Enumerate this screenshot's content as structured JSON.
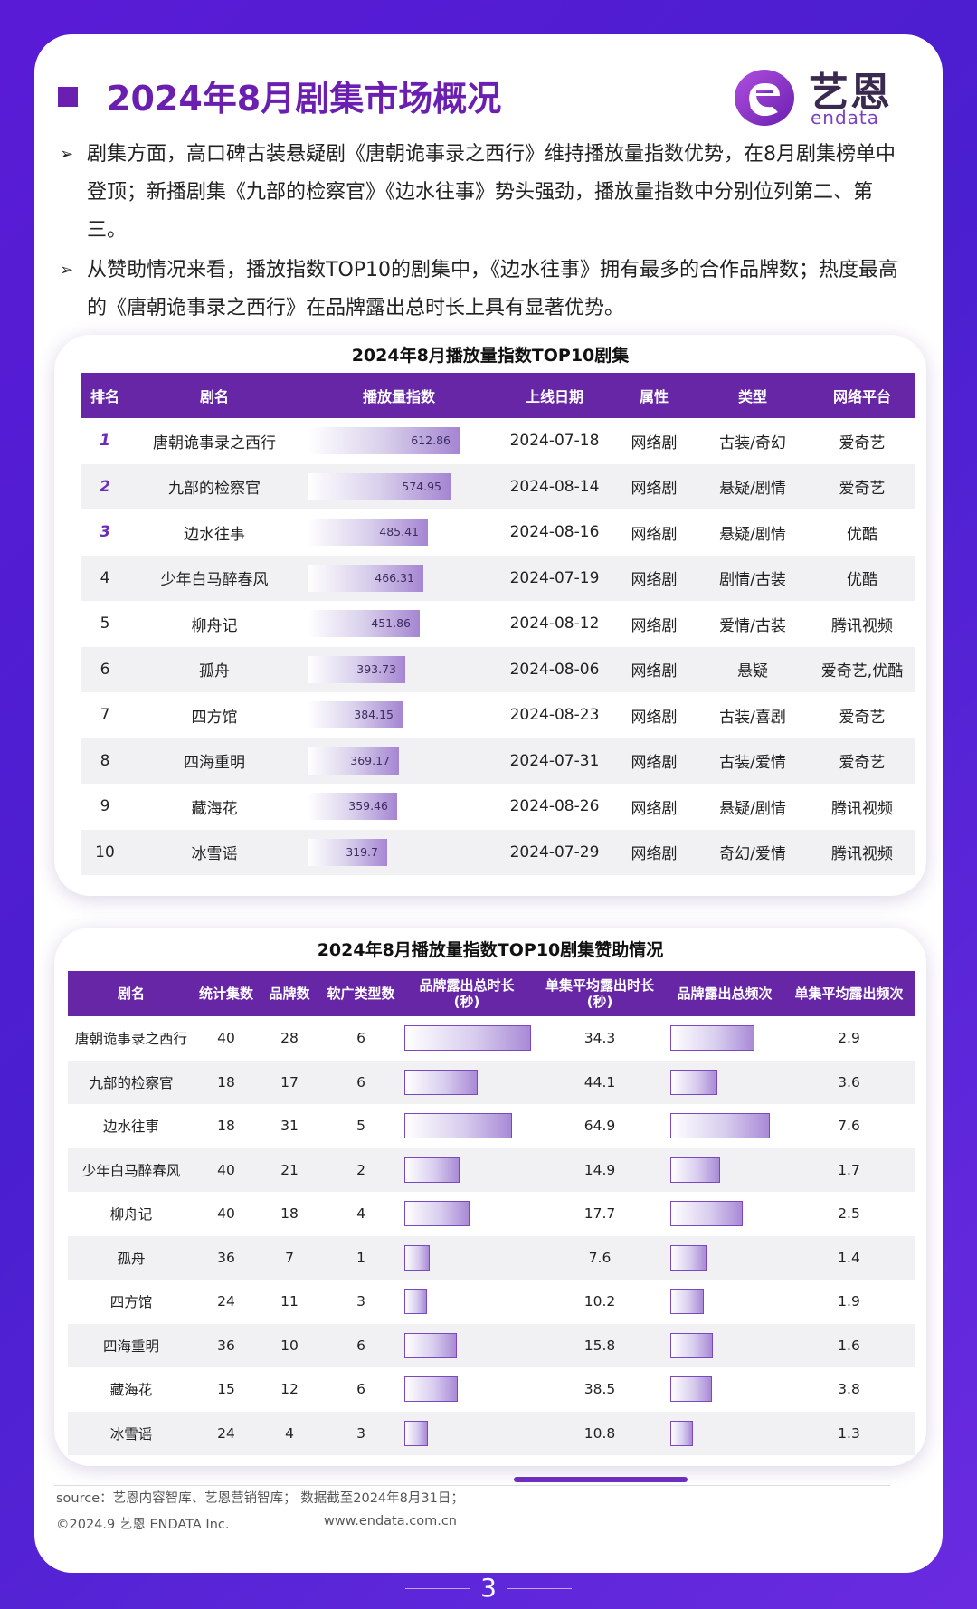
{
  "header": {
    "title": "2024年8月剧集市场概况",
    "logo_cn": "艺恩",
    "logo_en": "endata"
  },
  "bullets": [
    "剧集方面，高口碑古装悬疑剧《唐朝诡事录之西行》维持播放量指数优势，在8月剧集榜单中登顶；新播剧集《九部的检察官》《边水往事》势头强劲，播放量指数中分别位列第二、第三。",
    "从赞助情况来看，播放指数TOP10的剧集中，《边水往事》拥有最多的合作品牌数；热度最高的《唐朝诡事录之西行》在品牌露出总时长上具有显著优势。"
  ],
  "table1": {
    "title": "2024年8月播放量指数TOP10剧集",
    "headers": [
      "排名",
      "剧名",
      "播放量指数",
      "上线日期",
      "属性",
      "类型",
      "网络平台"
    ],
    "max_index": 612.86,
    "rows": [
      {
        "rank": "1",
        "name": "唐朝诡事录之西行",
        "index": 612.86,
        "index_label": "612.86",
        "date": "2024-07-18",
        "attr": "网络剧",
        "type": "古装/奇幻",
        "platform": "爱奇艺"
      },
      {
        "rank": "2",
        "name": "九部的检察官",
        "index": 574.95,
        "index_label": "574.95",
        "date": "2024-08-14",
        "attr": "网络剧",
        "type": "悬疑/剧情",
        "platform": "爱奇艺"
      },
      {
        "rank": "3",
        "name": "边水往事",
        "index": 485.41,
        "index_label": "485.41",
        "date": "2024-08-16",
        "attr": "网络剧",
        "type": "悬疑/剧情",
        "platform": "优酷"
      },
      {
        "rank": "4",
        "name": "少年白马醉春风",
        "index": 466.31,
        "index_label": "466.31",
        "date": "2024-07-19",
        "attr": "网络剧",
        "type": "剧情/古装",
        "platform": "优酷"
      },
      {
        "rank": "5",
        "name": "柳舟记",
        "index": 451.86,
        "index_label": "451.86",
        "date": "2024-08-12",
        "attr": "网络剧",
        "type": "爱情/古装",
        "platform": "腾讯视频"
      },
      {
        "rank": "6",
        "name": "孤舟",
        "index": 393.73,
        "index_label": "393.73",
        "date": "2024-08-06",
        "attr": "网络剧",
        "type": "悬疑",
        "platform": "爱奇艺,优酷"
      },
      {
        "rank": "7",
        "name": "四方馆",
        "index": 384.15,
        "index_label": "384.15",
        "date": "2024-08-23",
        "attr": "网络剧",
        "type": "古装/喜剧",
        "platform": "爱奇艺"
      },
      {
        "rank": "8",
        "name": "四海重明",
        "index": 369.17,
        "index_label": "369.17",
        "date": "2024-07-31",
        "attr": "网络剧",
        "type": "古装/爱情",
        "platform": "爱奇艺"
      },
      {
        "rank": "9",
        "name": "藏海花",
        "index": 359.46,
        "index_label": "359.46",
        "date": "2024-08-26",
        "attr": "网络剧",
        "type": "悬疑/剧情",
        "platform": "腾讯视频"
      },
      {
        "rank": "10",
        "name": "冰雪谣",
        "index": 319.7,
        "index_label": "319.7",
        "date": "2024-07-29",
        "attr": "网络剧",
        "type": "奇幻/爱情",
        "platform": "腾讯视频"
      }
    ]
  },
  "table2": {
    "title": "2024年8月播放量指数TOP10剧集赞助情况",
    "headers": [
      "剧名",
      "统计集数",
      "品牌数",
      "软广类型数",
      "品牌露出总时长",
      "单集平均露出时长",
      "品牌露出总频次",
      "单集平均露出频次"
    ],
    "header_units": [
      "",
      "",
      "",
      "",
      "(秒)",
      "(秒)",
      "",
      ""
    ],
    "rows": [
      {
        "name": "唐朝诡事录之西行",
        "episodes": "40",
        "brands": "28",
        "ad_types": "6",
        "total_duration": 1372,
        "avg_duration": "34.3",
        "total_freq": 116,
        "avg_freq": "2.9"
      },
      {
        "name": "九部的检察官",
        "episodes": "18",
        "brands": "17",
        "ad_types": "6",
        "total_duration": 794,
        "avg_duration": "44.1",
        "total_freq": 65,
        "avg_freq": "3.6"
      },
      {
        "name": "边水往事",
        "episodes": "18",
        "brands": "31",
        "ad_types": "5",
        "total_duration": 1168,
        "avg_duration": "64.9",
        "total_freq": 137,
        "avg_freq": "7.6"
      },
      {
        "name": "少年白马醉春风",
        "episodes": "40",
        "brands": "21",
        "ad_types": "2",
        "total_duration": 596,
        "avg_duration": "14.9",
        "total_freq": 68,
        "avg_freq": "1.7"
      },
      {
        "name": "柳舟记",
        "episodes": "40",
        "brands": "18",
        "ad_types": "4",
        "total_duration": 708,
        "avg_duration": "17.7",
        "total_freq": 100,
        "avg_freq": "2.5"
      },
      {
        "name": "孤舟",
        "episodes": "36",
        "brands": "7",
        "ad_types": "1",
        "total_duration": 274,
        "avg_duration": "7.6",
        "total_freq": 50,
        "avg_freq": "1.4"
      },
      {
        "name": "四方馆",
        "episodes": "24",
        "brands": "11",
        "ad_types": "3",
        "total_duration": 245,
        "avg_duration": "10.2",
        "total_freq": 46,
        "avg_freq": "1.9"
      },
      {
        "name": "四海重明",
        "episodes": "36",
        "brands": "10",
        "ad_types": "6",
        "total_duration": 569,
        "avg_duration": "15.8",
        "total_freq": 58,
        "avg_freq": "1.6"
      },
      {
        "name": "藏海花",
        "episodes": "15",
        "brands": "12",
        "ad_types": "6",
        "total_duration": 578,
        "avg_duration": "38.5",
        "total_freq": 57,
        "avg_freq": "3.8"
      },
      {
        "name": "冰雪谣",
        "episodes": "24",
        "brands": "4",
        "ad_types": "3",
        "total_duration": 259,
        "avg_duration": "10.8",
        "total_freq": 31,
        "avg_freq": "1.3"
      }
    ]
  },
  "footer": {
    "source": "source：艺恩内容智库、艺恩营销智库；  数据截至2024年8月31日；",
    "copyright": "©2024.9 艺恩 ENDATA Inc.",
    "website": "www.endata.com.cn",
    "page": "3"
  },
  "colors": {
    "accent": "#6a1fb0",
    "header_bg": "#6626a6",
    "background": "#5a1bd6"
  }
}
